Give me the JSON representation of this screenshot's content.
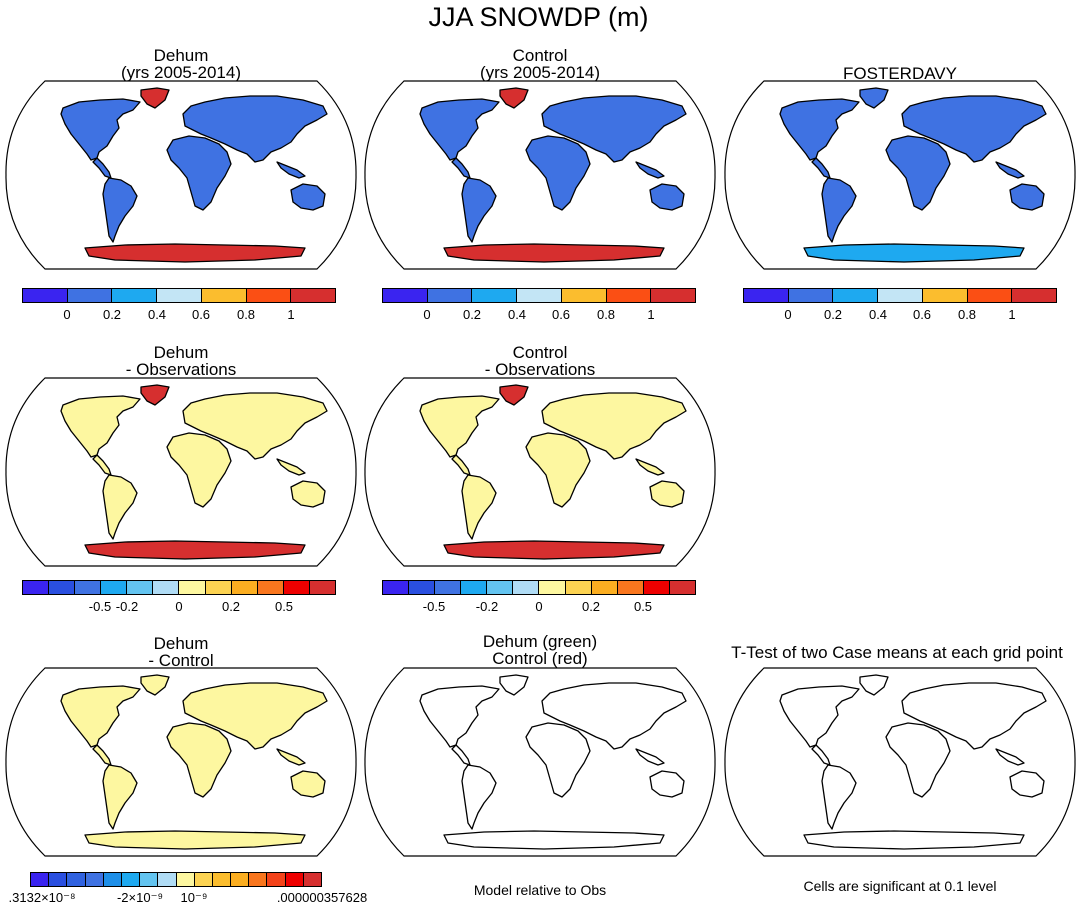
{
  "figure": {
    "title": "JJA SNOWDP (m)"
  },
  "panels": [
    {
      "id": "dehum",
      "title_line1": "Dehum",
      "title_line2": "(yrs 2005-2014)",
      "land": "#3f72e2",
      "antarctic": "#d62f2f",
      "greenland": "#d62f2f"
    },
    {
      "id": "control",
      "title_line1": "Control",
      "title_line2": "(yrs 2005-2014)",
      "land": "#3f72e2",
      "antarctic": "#d62f2f",
      "greenland": "#d62f2f"
    },
    {
      "id": "obs",
      "title_line1": "FOSTERDAVY",
      "title_line2": "",
      "land": "#3f72e2",
      "antarctic": "#1ea9f0",
      "greenland": "#3f72e2"
    },
    {
      "id": "dehum-obs",
      "title_line1": "Dehum",
      "title_line2": "- Observations",
      "land": "#fdf7a0",
      "antarctic": "#d62f2f",
      "greenland": "#d62f2f"
    },
    {
      "id": "control-obs",
      "title_line1": "Control",
      "title_line2": "- Observations",
      "land": "#fdf7a0",
      "antarctic": "#d62f2f",
      "greenland": "#d62f2f"
    },
    {
      "id": "dehum-control",
      "title_line1": "Dehum",
      "title_line2": "- Control",
      "land": "#fdf7a0",
      "antarctic": "#fdf7a0",
      "greenland": "#fdf7a0"
    },
    {
      "id": "green-red",
      "title_line1": "Dehum (green)",
      "title_line2": "Control (red)",
      "land": "none",
      "antarctic": "none",
      "greenland": "none"
    },
    {
      "id": "ttest",
      "title_line1": "T-Test of two Case means at each grid point",
      "title_line2": "",
      "land": "none",
      "antarctic": "none",
      "greenland": "none"
    }
  ],
  "colorbars": {
    "abs": {
      "colors": [
        "#3a24f0",
        "#3f72e2",
        "#1ea9f0",
        "#c3e5f5",
        "#fbbd2e",
        "#fb4f14",
        "#d62f2f"
      ],
      "ticks": [
        "0",
        "0.2",
        "0.4",
        "0.6",
        "0.8",
        "1"
      ]
    },
    "diff": {
      "colors": [
        "#3a24f0",
        "#2a4fe0",
        "#3f72e2",
        "#1ea9f0",
        "#63c4f0",
        "#b0dcf5",
        "#fdf7a0",
        "#fcd352",
        "#fbae21",
        "#f9761e",
        "#ee0000",
        "#d62f2f"
      ],
      "ticks": [
        "-0.5",
        "-0.2",
        "0",
        "0.2",
        "0.5"
      ]
    },
    "mc": {
      "colors": [
        "#3a24f0",
        "#2a4fe0",
        "#3062e0",
        "#3f72e2",
        "#1e8fe8",
        "#1ea9f0",
        "#63c4f0",
        "#b0dcf5",
        "#fdf7a0",
        "#fcd352",
        "#fbbd2e",
        "#fbae21",
        "#f9761e",
        "#f4431a",
        "#ee0000",
        "#d62f2f"
      ],
      "ticks": [
        ".3132×10⁻⁸",
        "-2×10⁻⁹",
        "10⁻⁹",
        ".000000357628"
      ]
    }
  },
  "notes": {
    "model_relative": "Model relative to Obs",
    "significance": "Cells are significant at 0.1 level"
  }
}
